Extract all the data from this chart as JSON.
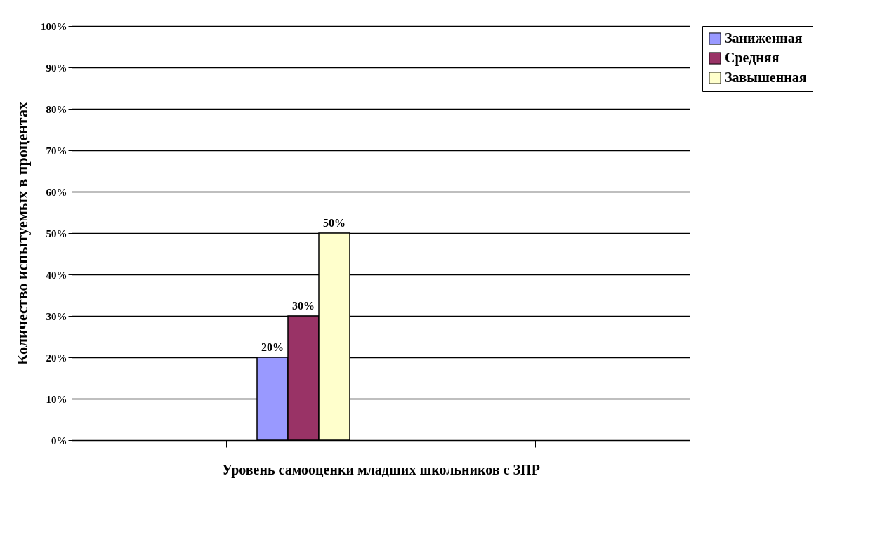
{
  "chart_data": {
    "type": "bar",
    "xlabel": "Уровень самооценки младших школьников с ЗПР",
    "ylabel": "Количество испытуемых в процентах",
    "categories": [
      null,
      null,
      null,
      null
    ],
    "series": [
      {
        "name": "Заниженная",
        "color": "#9999ff",
        "values": [
          null,
          20,
          null,
          null
        ],
        "value_labels": [
          null,
          "20%",
          null,
          null
        ]
      },
      {
        "name": "Средняя",
        "color": "#993366",
        "values": [
          null,
          30,
          null,
          null
        ],
        "value_labels": [
          null,
          "30%",
          null,
          null
        ]
      },
      {
        "name": "Завышенная",
        "color": "#ffffcc",
        "values": [
          null,
          50,
          null,
          null
        ],
        "value_labels": [
          null,
          "50%",
          null,
          null
        ]
      }
    ],
    "ylim": [
      0,
      100
    ],
    "yticks": [
      {
        "value": 0,
        "label": "0%"
      },
      {
        "value": 10,
        "label": "10%"
      },
      {
        "value": 20,
        "label": "20%"
      },
      {
        "value": 30,
        "label": "30%"
      },
      {
        "value": 40,
        "label": "40%"
      },
      {
        "value": 50,
        "label": "50%"
      },
      {
        "value": 60,
        "label": "60%"
      },
      {
        "value": 70,
        "label": "70%"
      },
      {
        "value": 80,
        "label": "80%"
      },
      {
        "value": 90,
        "label": "90%"
      },
      {
        "value": 100,
        "label": "100%"
      }
    ],
    "grid": "y",
    "legend": "right"
  }
}
